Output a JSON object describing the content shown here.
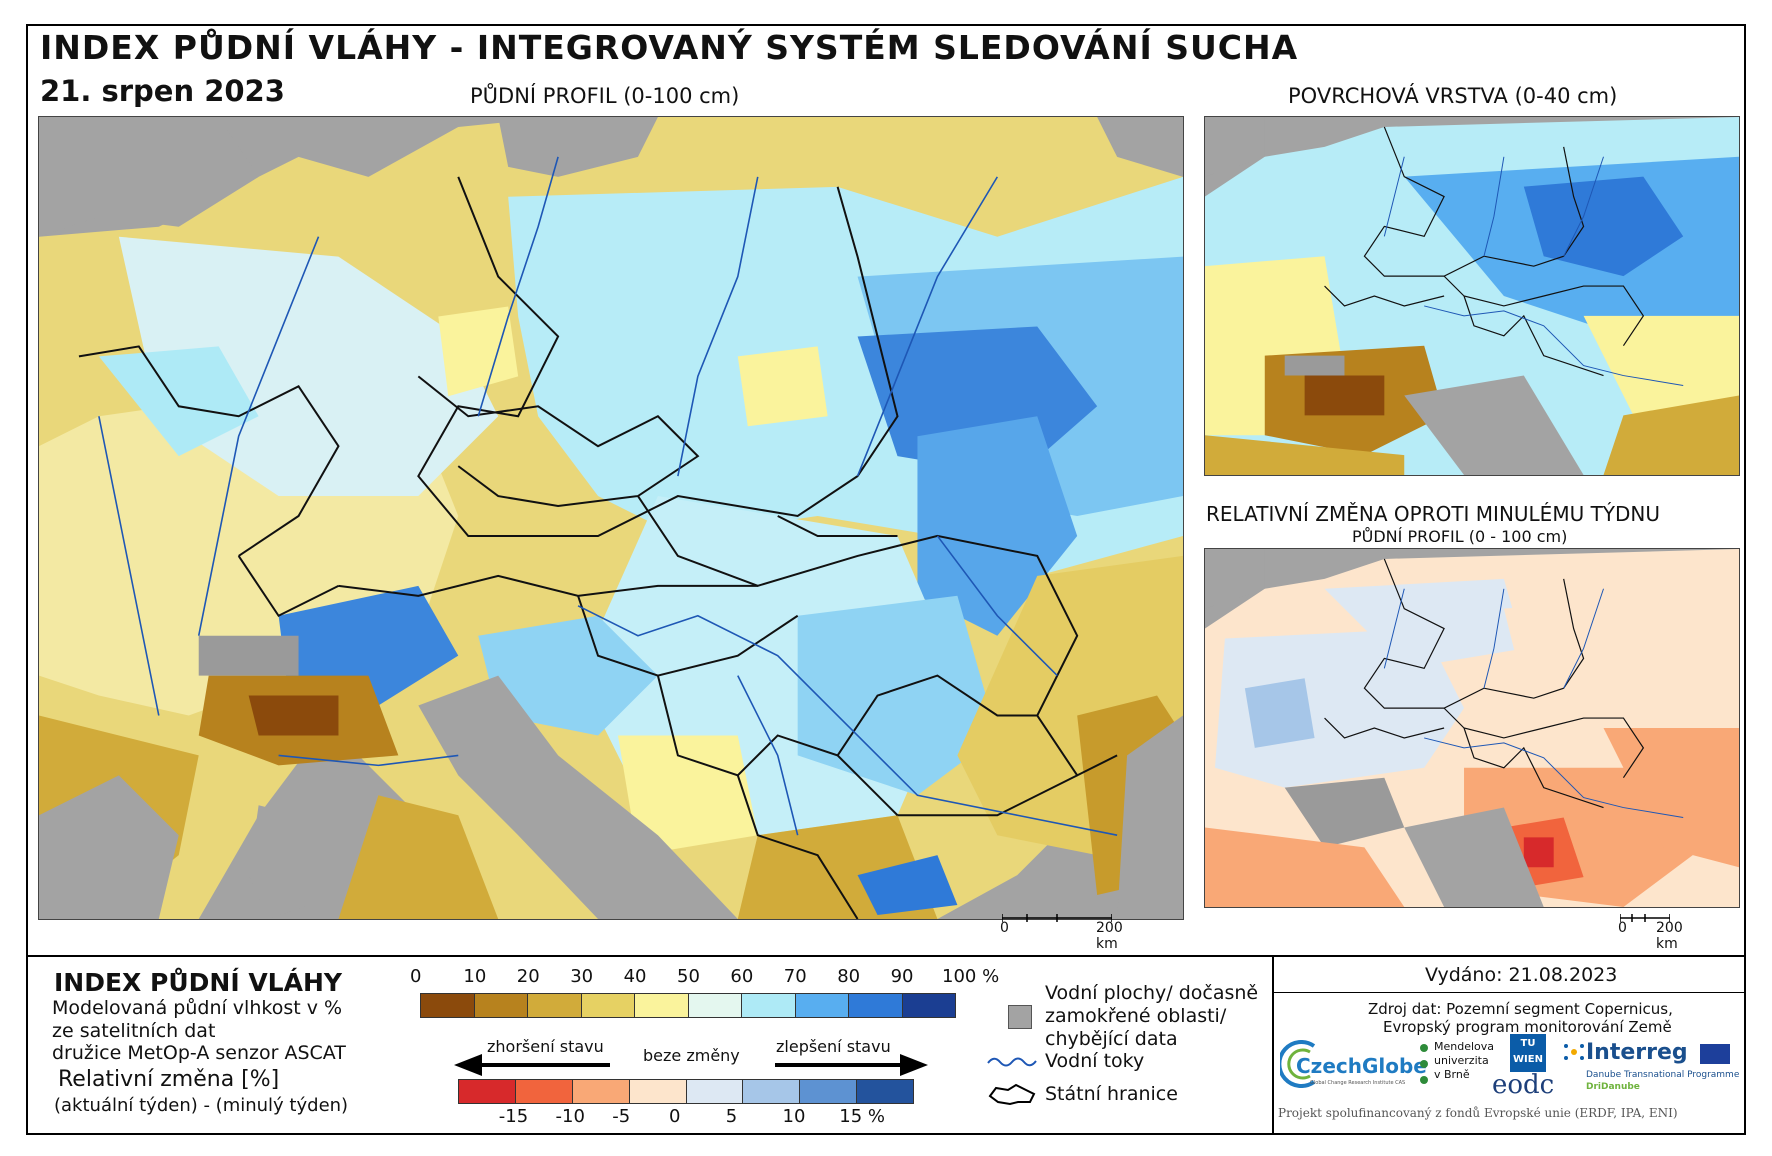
{
  "header": {
    "title": "INDEX PŮDNÍ VLÁHY - INTEGROVANÝ SYSTÉM SLEDOVÁNÍ SUCHA",
    "date": "21. srpen 2023"
  },
  "panels": {
    "main_title": "PŮDNÍ PROFIL (0-100 cm)",
    "surface_title": "POVRCHOVÁ VRSTVA (0-40 cm)",
    "change_title": "RELATIVNÍ ZMĚNA OPROTI MINULÉMU TÝDNU",
    "change_subtitle": "PŮDNÍ PROFIL (0 - 100 cm)"
  },
  "scalebar": {
    "main_zero": "0",
    "main_len": "200 km",
    "small_zero": "0",
    "small_len": "200 km"
  },
  "legend": {
    "title": "INDEX PŮDNÍ VLÁHY",
    "line1": "Modelovaná půdní vlhkost v %",
    "line2": "ze satelitních dat",
    "line3": "družice MetOp-A senzor ASCAT",
    "rel_title": "Relativní změna [%]",
    "rel_sub": "(aktuální týden) - (minulý týden)",
    "index_ticks": [
      "0",
      "10",
      "20",
      "30",
      "40",
      "50",
      "60",
      "70",
      "80",
      "90",
      "100 %"
    ],
    "index_colors": [
      "#8b4a0c",
      "#b7821e",
      "#d1ab3a",
      "#e6d163",
      "#faf39c",
      "#e4f7ef",
      "#aeeaf6",
      "#58aef0",
      "#2f7ad8",
      "#1b3e92"
    ],
    "worse_label": "zhoršení stavu",
    "no_change_label": "beze změny",
    "better_label": "zlepšení stavu",
    "change_ticks": [
      "-15",
      "-10",
      "-5",
      "0",
      "5",
      "10",
      "15 %"
    ],
    "change_colors": [
      "#d7292b",
      "#f1643d",
      "#f9a876",
      "#fde5cc",
      "#dde8f3",
      "#a6c6e8",
      "#5d92d2",
      "#23539d"
    ],
    "water_label_1": "Vodní plochy/ dočasně",
    "water_label_2": "zamokřené oblasti/",
    "water_label_3": "chybějící data",
    "rivers_label": "Vodní toky",
    "borders_label": "Státní hranice"
  },
  "info": {
    "issued": "Vydáno: 21.08.2023",
    "source1": "Zdroj dat: Pozemní segment Copernicus,",
    "source2": "Evropský program monitorování Země",
    "czechglobe": "CzechGlobe",
    "czechglobe_sub": "Global Change Research Institute CAS",
    "mendel1": "Mendelova",
    "mendel2": "univerzita",
    "mendel3": "v Brně",
    "tuwien": "TU WIEN",
    "eodc": "eodc",
    "interreg": "Interreg",
    "interreg_sub1": "Danube Transnational Programme",
    "interreg_sub2": "DriDanube",
    "footer": "Projekt spolufinancovaný z fondů Evropské unie (ERDF, IPA, ENI)"
  }
}
